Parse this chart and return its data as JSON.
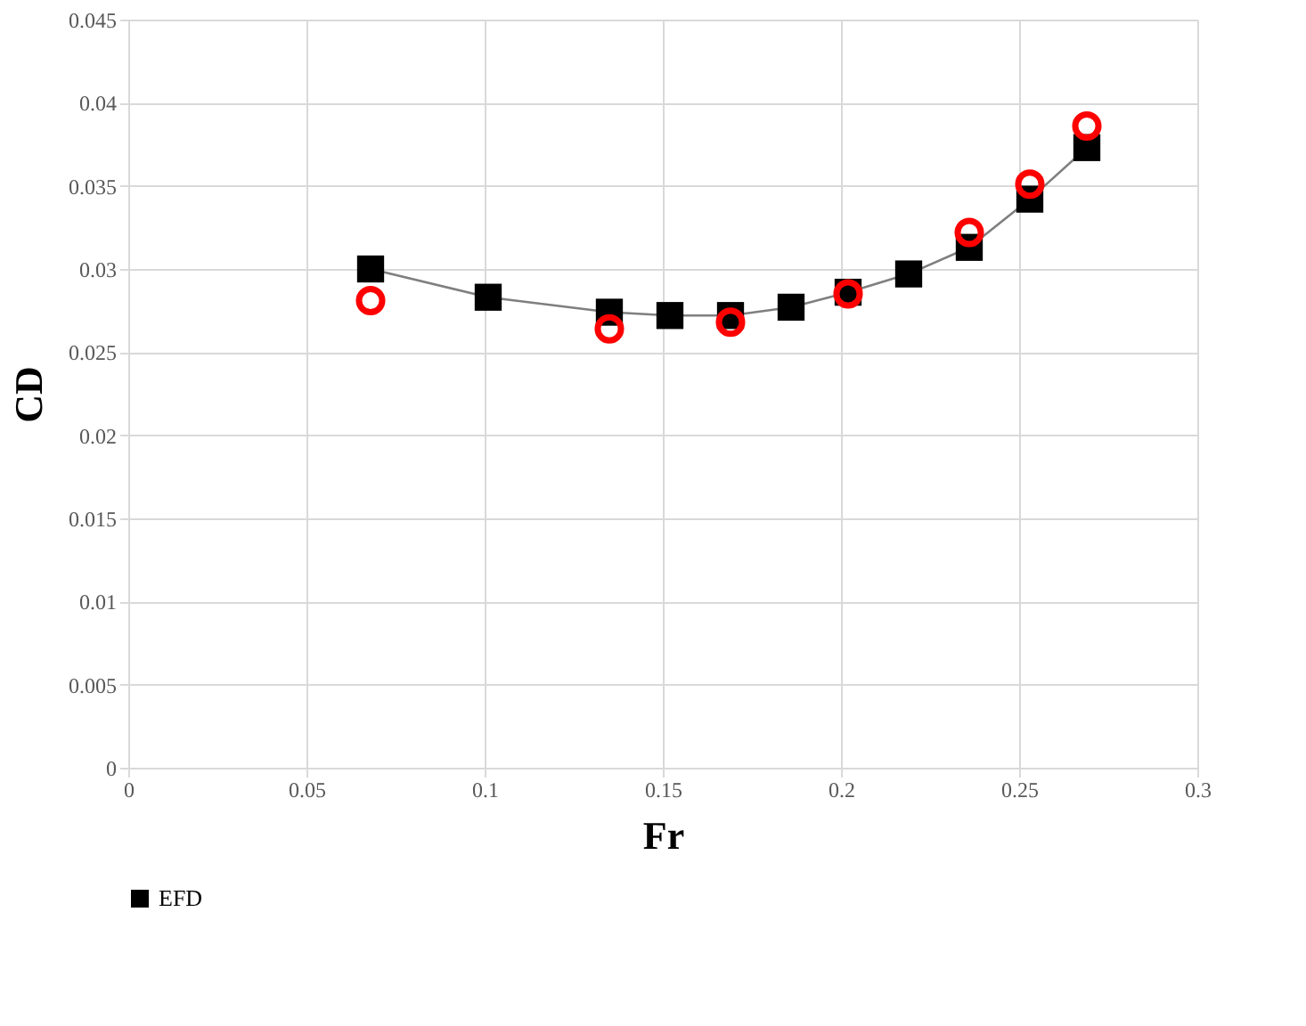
{
  "chart_data": {
    "type": "line",
    "xlabel": "Fr",
    "ylabel": "CD",
    "xlim": [
      0,
      0.3
    ],
    "xticks": [
      0,
      0.05,
      0.1,
      0.15,
      0.2,
      0.25,
      0.3
    ],
    "ylim": [
      0,
      0.045
    ],
    "yticks": [
      0,
      0.005,
      0.01,
      0.015,
      0.02,
      0.025,
      0.03,
      0.035,
      0.04,
      0.045
    ],
    "grid": true,
    "legend": "bottom",
    "series": [
      {
        "name": "EFD",
        "color": "#000000",
        "marker": "square",
        "line_style": "solid",
        "x": [
          0.068,
          0.101,
          0.135,
          0.152,
          0.169,
          0.186,
          0.202,
          0.219,
          0.236,
          0.253,
          0.269
        ],
        "values": [
          0.03,
          0.0283,
          0.0274,
          0.0272,
          0.0272,
          0.0277,
          0.0286,
          0.0297,
          0.0313,
          0.0342,
          0.0373
        ]
      },
      {
        "type": "scatter",
        "color": "#ff0000",
        "marker": "circle",
        "x": [
          0.068,
          0.135,
          0.169,
          0.202,
          0.236,
          0.253,
          0.269
        ],
        "values": [
          0.0281,
          0.0264,
          0.0268,
          0.0285,
          0.0322,
          0.0351,
          0.0386
        ]
      }
    ]
  }
}
